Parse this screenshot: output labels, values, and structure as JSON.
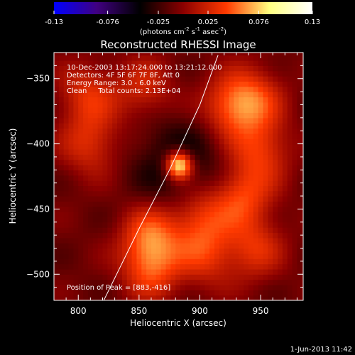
{
  "chart_data": {
    "type": "heatmap",
    "title": "Reconstructed RHESSI Image",
    "xlabel": "Heliocentric X (arcsec)",
    "ylabel": "Heliocentric Y (arcsec)",
    "xlim": [
      780,
      985
    ],
    "ylim": [
      -520,
      -330
    ],
    "x_ticks": [
      800,
      850,
      900,
      950
    ],
    "y_ticks": [
      -350,
      -400,
      -450,
      -500
    ],
    "colorbar": {
      "label_line1": "(photons cm",
      "label_exp1": "-2",
      "label_mid": " s",
      "label_exp2": "-1",
      "label_mid2": " asec",
      "label_exp3": "-2",
      "label_end": ")",
      "range": [
        -0.13,
        0.13
      ],
      "ticks": [
        "-0.13",
        "-0.076",
        "-0.025",
        "0.025",
        "0.076",
        "0.13"
      ],
      "colormap": [
        "#0000ff",
        "#400080",
        "#000000",
        "#8a0000",
        "#ff3a00",
        "#ffff80",
        "#ffffff"
      ]
    },
    "annotations": [
      "10-Dec-2003 13:17:24.000 to 13:21:12.000",
      "Detectors: 4F 5F 6F 7F 8F, Att 0",
      "Energy Range: 3.0 - 6.0 keV",
      "Clean     Total counts: 2.13E+04"
    ],
    "peak_label": "Position of Peak = [883,-416]",
    "peak": {
      "x": 883,
      "y": -416,
      "value": 0.13
    },
    "limb_curve": {
      "x": [
        821,
        850,
        875,
        900,
        915
      ],
      "y": [
        -520,
        -465,
        -420,
        -370,
        -332
      ]
    },
    "background_level": -0.01,
    "features": [
      {
        "x": 808,
        "y": -362,
        "value": 0.04
      },
      {
        "x": 810,
        "y": -400,
        "value": 0.04
      },
      {
        "x": 855,
        "y": -358,
        "value": 0.035
      },
      {
        "x": 925,
        "y": -372,
        "value": 0.05
      },
      {
        "x": 945,
        "y": -365,
        "value": 0.045
      },
      {
        "x": 950,
        "y": -405,
        "value": 0.045
      },
      {
        "x": 935,
        "y": -440,
        "value": 0.05
      },
      {
        "x": 900,
        "y": -455,
        "value": 0.045
      },
      {
        "x": 860,
        "y": -470,
        "value": 0.055
      },
      {
        "x": 860,
        "y": -495,
        "value": 0.05
      },
      {
        "x": 905,
        "y": -485,
        "value": 0.04
      },
      {
        "x": 945,
        "y": -480,
        "value": 0.04
      }
    ]
  },
  "footer_timestamp": "1-Jun-2013 11:42"
}
